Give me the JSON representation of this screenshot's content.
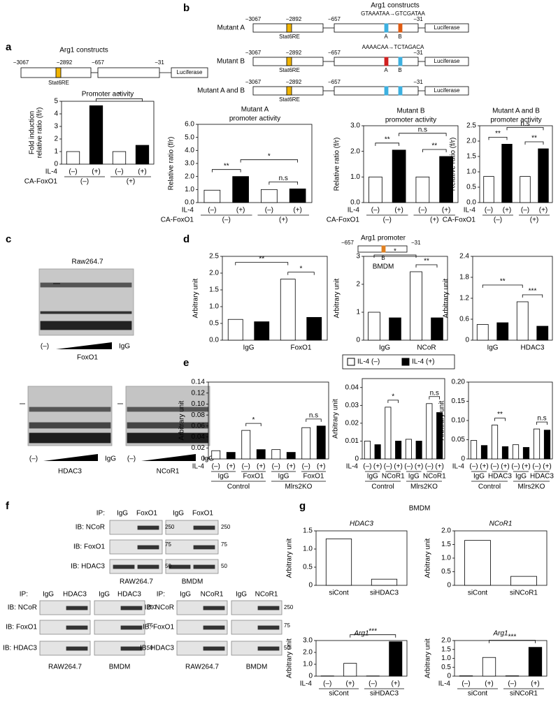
{
  "figure": {
    "panels": [
      "a",
      "b",
      "c",
      "d",
      "e",
      "f",
      "g"
    ],
    "constructs": {
      "title": "Arg1 constructs",
      "promoter_title": "Arg1 promoter",
      "positions": [
        "−3067",
        "−2892",
        "−657",
        "−31"
      ],
      "element": "Stat6RE",
      "reporter": "Luciferase",
      "mutants": [
        "Mutant A",
        "Mutant B",
        "Mutant A and B"
      ],
      "sites": [
        "A",
        "B"
      ],
      "mutation_a": "GTAAATAA→GTCGATAA",
      "mutation_b": "AAAACAA→TCTAGACA"
    },
    "cell_types": [
      "Raw264.7",
      "BMDM",
      "RAW264.7"
    ],
    "emsa": {
      "competitor_none": "(–)",
      "competitor_igg": "IgG",
      "antibodies": [
        "FoxO1",
        "HDAC3",
        "NCoR1"
      ]
    },
    "coip": {
      "ip_label": "IP:",
      "igg": "IgG",
      "ip_targets": [
        "FoxO1",
        "HDAC3",
        "NCoR1"
      ],
      "ib_labels": [
        "IB: NCoR",
        "IB: FoxO1",
        "IB: HDAC3"
      ],
      "mw": [
        250,
        75,
        50
      ]
    },
    "legend": [
      {
        "name": "IL-4 (–)",
        "color": "#ffffff"
      },
      {
        "name": "IL-4 (+)",
        "color": "#000000"
      }
    ]
  },
  "chart_data": [
    {
      "type": "bar",
      "title": "Promoter activity",
      "ylabel": [
        "Fold induction",
        "relative ratio (f/r)"
      ],
      "categories": [
        "(–)",
        "(+)",
        "(–)",
        "(+)"
      ],
      "values": [
        1.0,
        4.65,
        1.0,
        1.5
      ],
      "colors": [
        "#ffffff",
        "#000000",
        "#ffffff",
        "#000000"
      ],
      "row_label": "IL-4",
      "groups": [
        "(–)",
        "(+)"
      ],
      "row2_label": "CA-FoxO1",
      "ylim": [
        0,
        5
      ],
      "yticks": [
        0,
        1,
        2,
        3,
        4,
        5
      ],
      "annotations": [
        "*"
      ]
    },
    {
      "type": "bar",
      "title": "Mutant A",
      "subtitle": "promoter activity",
      "ylabel": "Relative ratio (f/r)",
      "categories": [
        "(–)",
        "(+)",
        "(–)",
        "(+)"
      ],
      "values": [
        0.95,
        2.0,
        1.0,
        1.05
      ],
      "colors": [
        "#ffffff",
        "#000000",
        "#ffffff",
        "#000000"
      ],
      "row_label": "IL-4",
      "groups": [
        "(–)",
        "(+)"
      ],
      "row2_label": "CA-FoxO1",
      "ylim": [
        0,
        6
      ],
      "yticks": [
        {
          "value": 0,
          "label": "0.0"
        },
        {
          "value": 1,
          "label": "1.0"
        },
        {
          "value": 2,
          "label": "2.0"
        },
        {
          "value": 3,
          "label": "3.0"
        },
        {
          "value": 4,
          "label": "4.0"
        },
        {
          "value": 5,
          "label": "5.0"
        },
        {
          "value": 6,
          "label": "6.0"
        }
      ],
      "annotations": [
        "**",
        "*",
        "n.s"
      ]
    },
    {
      "type": "bar",
      "title": "Mutant B",
      "subtitle": "promoter activity",
      "ylabel": "Relative ratio (f/r)",
      "categories": [
        "(–)",
        "(+)",
        "(–)",
        "(+)"
      ],
      "values": [
        1.0,
        2.05,
        1.0,
        1.8
      ],
      "colors": [
        "#ffffff",
        "#000000",
        "#ffffff",
        "#000000"
      ],
      "row_label": "IL-4",
      "groups": [
        "(–)",
        "(+)"
      ],
      "row2_label": "CA-FoxO1",
      "ylim": [
        0,
        3
      ],
      "yticks": [
        {
          "value": 0,
          "label": "0.0"
        },
        {
          "value": 1,
          "label": "1.0"
        },
        {
          "value": 2,
          "label": "2.0"
        },
        {
          "value": 3,
          "label": "3.0"
        }
      ],
      "annotations": [
        "**",
        "n.s",
        "**"
      ]
    },
    {
      "type": "bar",
      "title": "Mutant A and B",
      "subtitle": "promoter activity",
      "ylabel": "Relative ratio (f/r)",
      "categories": [
        "(–)",
        "(+)",
        "(–)",
        "(+)"
      ],
      "values": [
        0.85,
        1.9,
        0.85,
        1.75
      ],
      "colors": [
        "#ffffff",
        "#000000",
        "#ffffff",
        "#000000"
      ],
      "row_label": "IL-4",
      "groups": [
        "(–)",
        "(+)"
      ],
      "row2_label": "CA-FoxO1",
      "ylim": [
        0,
        2.5
      ],
      "yticks": [
        {
          "value": 0,
          "label": "0.0"
        },
        0.5,
        {
          "value": 1,
          "label": "1.0"
        },
        1.5,
        {
          "value": 2,
          "label": "2.0"
        },
        2.5
      ],
      "annotations": [
        "**",
        "n.s",
        "**"
      ]
    },
    {
      "type": "bar",
      "ylabel": "Arbitrary unit",
      "values": [
        0.62,
        0.55,
        1.82,
        0.68
      ],
      "colors": [
        "#ffffff",
        "#000000",
        "#ffffff",
        "#000000"
      ],
      "groups": [
        "IgG",
        "FoxO1"
      ],
      "ylim": [
        0,
        2.5
      ],
      "yticks": [
        {
          "value": 0,
          "label": "0.0"
        },
        0.5,
        {
          "value": 1,
          "label": "1.0"
        },
        1.5,
        {
          "value": 2,
          "label": "2.0"
        },
        2.5
      ],
      "annotations": [
        "**",
        "*"
      ]
    },
    {
      "type": "bar",
      "ylabel": "Arbitrary unit",
      "values": [
        1.0,
        0.8,
        2.45,
        0.8
      ],
      "colors": [
        "#ffffff",
        "#000000",
        "#ffffff",
        "#000000"
      ],
      "groups": [
        "IgG",
        "NCoR"
      ],
      "ylim": [
        0,
        3
      ],
      "yticks": [
        0,
        1,
        2,
        3
      ],
      "annotations": [
        "*",
        "**"
      ]
    },
    {
      "type": "bar",
      "ylabel": "Arbitrary unit",
      "values": [
        0.45,
        0.5,
        1.1,
        0.4
      ],
      "colors": [
        "#ffffff",
        "#000000",
        "#ffffff",
        "#000000"
      ],
      "groups": [
        "IgG",
        "HDAC3"
      ],
      "ylim": [
        0,
        2.4
      ],
      "yticks": [
        0,
        0.6,
        1.2,
        1.8,
        2.4
      ],
      "annotations": [
        "**",
        "***"
      ]
    },
    {
      "type": "bar",
      "ylabel": "Arbitrary unit",
      "categories": [
        "(–)",
        "(+)",
        "(–)",
        "(+)",
        "(–)",
        "(+)",
        "(–)",
        "(+)"
      ],
      "values": [
        0.015,
        0.012,
        0.052,
        0.017,
        0.017,
        0.012,
        0.057,
        0.06
      ],
      "colors": [
        "#ffffff",
        "#000000",
        "#ffffff",
        "#000000",
        "#ffffff",
        "#000000",
        "#ffffff",
        "#000000"
      ],
      "row_label": "IL-4",
      "groups": [
        "IgG",
        "FoxO1",
        "IgG",
        "FoxO1"
      ],
      "supergroups": [
        "Control",
        "Mlrs2KO"
      ],
      "ylim": [
        0,
        0.14
      ],
      "yticks": [
        0,
        0.02,
        0.04,
        0.06,
        0.08,
        {
          "value": 0.1,
          "label": "0.10"
        },
        0.12,
        0.14
      ],
      "annotations": [
        "*",
        "n.s"
      ]
    },
    {
      "type": "bar",
      "ylabel": "Arbitrary unit",
      "categories": [
        "(–)",
        "(+)",
        "(–)",
        "(+)",
        "(–)",
        "(+)",
        "(–)",
        "(+)"
      ],
      "values": [
        0.01,
        0.008,
        0.029,
        0.01,
        0.011,
        0.01,
        0.031,
        0.026
      ],
      "colors": [
        "#ffffff",
        "#000000",
        "#ffffff",
        "#000000",
        "#ffffff",
        "#000000",
        "#ffffff",
        "#000000"
      ],
      "row_label": "IL-4",
      "groups": [
        "IgG",
        "NCoR1",
        "IgG",
        "NCoR1"
      ],
      "supergroups": [
        "Control",
        "Mlrs2KO"
      ],
      "ylim": [
        0,
        0.045
      ],
      "yticks": [
        0,
        0.01,
        0.02,
        0.03,
        0.04
      ],
      "annotations": [
        "*",
        "n.s"
      ]
    },
    {
      "type": "bar",
      "ylabel": "Arbitrary unit",
      "categories": [
        "(–)",
        "(+)",
        "(–)",
        "(+)",
        "(–)",
        "(+)",
        "(–)",
        "(+)"
      ],
      "values": [
        0.048,
        0.035,
        0.088,
        0.032,
        0.037,
        0.03,
        0.078,
        0.075
      ],
      "colors": [
        "#ffffff",
        "#000000",
        "#ffffff",
        "#000000",
        "#ffffff",
        "#000000",
        "#ffffff",
        "#000000"
      ],
      "row_label": "IL-4",
      "groups": [
        "IgG",
        "HDAC3",
        "IgG",
        "HDAC3"
      ],
      "supergroups": [
        "Control",
        "Mlrs2KO"
      ],
      "ylim": [
        0,
        0.2
      ],
      "yticks": [
        0,
        0.05,
        {
          "value": 0.1,
          "label": "0.10"
        },
        0.15,
        {
          "value": 0.2,
          "label": "0.20"
        }
      ],
      "annotations": [
        "**",
        "n.s"
      ]
    },
    {
      "type": "bar",
      "title": "HDAC3",
      "ylabel": "Arbitrary unit",
      "categories": [
        "siCont",
        "siHDAC3"
      ],
      "values": [
        1.28,
        0.17
      ],
      "colors": [
        "#ffffff",
        "#ffffff"
      ],
      "ylim": [
        0,
        1.5
      ],
      "yticks": [
        0,
        0.5,
        {
          "value": 1,
          "label": "1.0"
        },
        1.5
      ],
      "annotations": []
    },
    {
      "type": "bar",
      "title": "NCoR1",
      "ylabel": "Arbitrary unit",
      "categories": [
        "siCont",
        "siNCoR1"
      ],
      "values": [
        1.65,
        0.33
      ],
      "colors": [
        "#ffffff",
        "#ffffff"
      ],
      "ylim": [
        0,
        2
      ],
      "yticks": [
        0,
        0.5,
        {
          "value": 1,
          "label": "1.0"
        },
        1.5,
        {
          "value": 2,
          "label": "2.0"
        }
      ],
      "annotations": []
    },
    {
      "type": "bar",
      "title": "Arg1",
      "ylabel": "Arbitrary unit",
      "categories": [
        "(–)",
        "(+)",
        "(–)",
        "(+)"
      ],
      "values": [
        0.02,
        1.08,
        0.02,
        2.9
      ],
      "colors": [
        "#ffffff",
        "#ffffff",
        "#ffffff",
        "#000000"
      ],
      "row_label": "IL-4",
      "groups": [
        "siCont",
        "siHDAC3"
      ],
      "ylim": [
        0,
        3
      ],
      "yticks": [
        0,
        {
          "value": 1,
          "label": "1.0"
        },
        {
          "value": 2,
          "label": "2.0"
        },
        {
          "value": 3,
          "label": "3.0"
        }
      ],
      "annotations": [
        "***"
      ]
    },
    {
      "type": "bar",
      "title": "Arg1",
      "ylabel": "Arbitrary unit",
      "categories": [
        "(–)",
        "(+)",
        "(–)",
        "(+)"
      ],
      "values": [
        0.02,
        1.05,
        0.02,
        1.62
      ],
      "colors": [
        "#ffffff",
        "#ffffff",
        "#ffffff",
        "#000000"
      ],
      "row_label": "IL-4",
      "groups": [
        "siCont",
        "siNCoR1"
      ],
      "ylim": [
        0,
        2
      ],
      "yticks": [
        0,
        0.5,
        {
          "value": 1,
          "label": "1.0"
        },
        1.5,
        {
          "value": 2,
          "label": "2.0"
        }
      ],
      "annotations": [
        "***"
      ]
    }
  ]
}
